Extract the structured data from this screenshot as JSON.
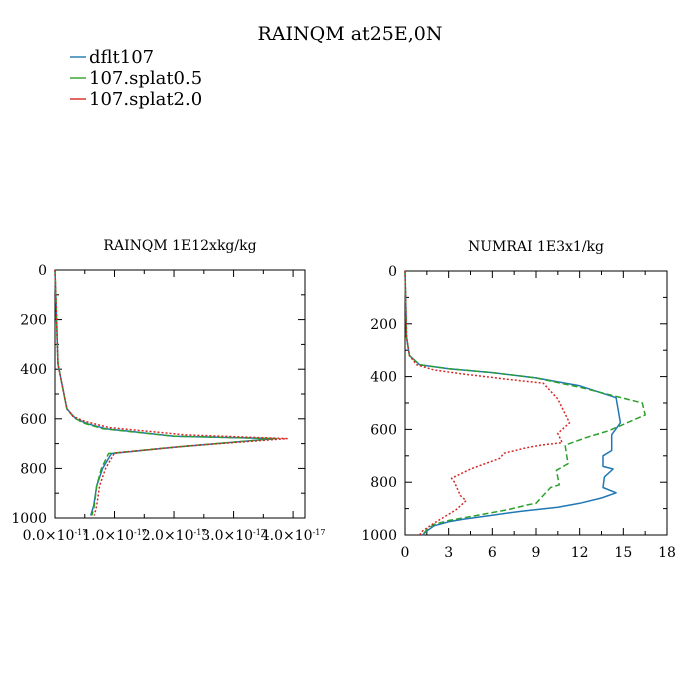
{
  "title": "RAINQM at25E,0N",
  "legend": [
    {
      "label": "dflt107",
      "color": "#1f77b4",
      "dash": "solid"
    },
    {
      "label": "107.splat0.5",
      "color": "#2ca02c",
      "dash": "dashed"
    },
    {
      "label": "107.splat2.0",
      "color": "#d62728",
      "dash": "dotted"
    }
  ],
  "chart_data": [
    {
      "type": "line",
      "title": "RAINQM  1E12xkg/kg",
      "xlabel": "",
      "ylabel": "",
      "xlim": [
        0,
        4.2e-17
      ],
      "ylim": [
        1000,
        0
      ],
      "xticks": [
        0,
        1e-17,
        2e-17,
        3e-17,
        4e-17
      ],
      "xtick_mantissa": [
        "0.0",
        "1.0",
        "2.0",
        "3.0",
        "4.0"
      ],
      "xtick_power": "-17",
      "yticks": [
        0,
        200,
        400,
        600,
        800,
        1000
      ],
      "ytick_labels": [
        "0",
        "200",
        "400",
        "600",
        "800",
        "1000"
      ],
      "series": [
        {
          "name": "dflt107",
          "x": [
            0,
            5e-19,
            2e-18,
            3.5e-18,
            5.5e-18,
            8.5e-18,
            2e-17,
            3.7e-17,
            2e-17,
            9.5e-18,
            8e-18,
            7e-18,
            6.5e-18,
            6e-18
          ],
          "y": [
            0,
            380,
            560,
            600,
            620,
            640,
            670,
            680,
            715,
            740,
            800,
            870,
            950,
            990
          ]
        },
        {
          "name": "107.splat0.5",
          "x": [
            0,
            5e-19,
            2e-18,
            3e-18,
            4.5e-18,
            8e-18,
            2e-17,
            3.72e-17,
            2.1e-17,
            9e-18,
            7.8e-18,
            7e-18,
            6.6e-18,
            6.2e-18
          ],
          "y": [
            0,
            380,
            560,
            590,
            615,
            640,
            670,
            680,
            712,
            740,
            800,
            870,
            950,
            990
          ]
        },
        {
          "name": "107.splat2.0",
          "x": [
            0,
            5e-19,
            2e-18,
            3e-18,
            5e-18,
            9e-18,
            2.2e-17,
            3.9e-17,
            2.3e-17,
            1e-17,
            8.5e-18,
            7.5e-18,
            7e-18,
            6.6e-18
          ],
          "y": [
            0,
            380,
            560,
            590,
            610,
            635,
            665,
            680,
            708,
            738,
            800,
            870,
            950,
            990
          ]
        }
      ]
    },
    {
      "type": "line",
      "title": "NUMRAI  1E3x1/kg",
      "xlabel": "",
      "ylabel": "",
      "xlim": [
        0,
        18
      ],
      "ylim": [
        1000,
        0
      ],
      "xticks": [
        0,
        3,
        6,
        9,
        12,
        15,
        18
      ],
      "xtick_labels": [
        "0",
        "3",
        "6",
        "9",
        "12",
        "15",
        "18"
      ],
      "yticks": [
        0,
        200,
        400,
        600,
        800,
        1000
      ],
      "ytick_labels": [
        "0",
        "200",
        "400",
        "600",
        "800",
        "1000"
      ],
      "series": [
        {
          "name": "dflt107",
          "x": [
            0,
            0.1,
            0.3,
            1.0,
            3,
            6,
            9,
            12,
            14.5,
            14.8,
            14.2,
            14.2,
            13.6,
            13.6,
            14.3,
            13.7,
            13.6,
            14.5,
            13.5,
            12,
            10.5,
            8,
            6,
            4,
            3,
            2,
            1.5,
            1.2
          ],
          "y": [
            0,
            250,
            320,
            355,
            370,
            385,
            405,
            435,
            480,
            575,
            620,
            680,
            700,
            740,
            750,
            780,
            820,
            840,
            860,
            880,
            895,
            910,
            925,
            940,
            950,
            965,
            985,
            1000
          ]
        },
        {
          "name": "107.splat0.5",
          "x": [
            0,
            0.1,
            0.3,
            1.0,
            3,
            6,
            9,
            12,
            16.3,
            16.5,
            14,
            12.5,
            11,
            11.2,
            10.4,
            10.6,
            10,
            9,
            8.5,
            7,
            5,
            3,
            2,
            1.5,
            1.2
          ],
          "y": [
            0,
            250,
            320,
            355,
            370,
            385,
            405,
            440,
            500,
            545,
            605,
            630,
            660,
            730,
            755,
            810,
            820,
            880,
            885,
            905,
            925,
            945,
            960,
            980,
            1000
          ]
        },
        {
          "name": "107.splat2.0",
          "x": [
            0,
            0.1,
            0.3,
            0.8,
            2,
            4,
            7,
            9.5,
            10.5,
            11.3,
            10.5,
            10.8,
            9.3,
            8.3,
            6.8,
            6.5,
            4.5,
            3.2,
            3.4,
            3.8,
            4.2,
            3.5,
            2.0,
            1.2,
            1.0
          ],
          "y": [
            0,
            250,
            320,
            355,
            375,
            390,
            410,
            425,
            485,
            575,
            615,
            650,
            660,
            670,
            690,
            710,
            750,
            785,
            800,
            850,
            870,
            905,
            955,
            985,
            1000
          ]
        }
      ]
    }
  ]
}
